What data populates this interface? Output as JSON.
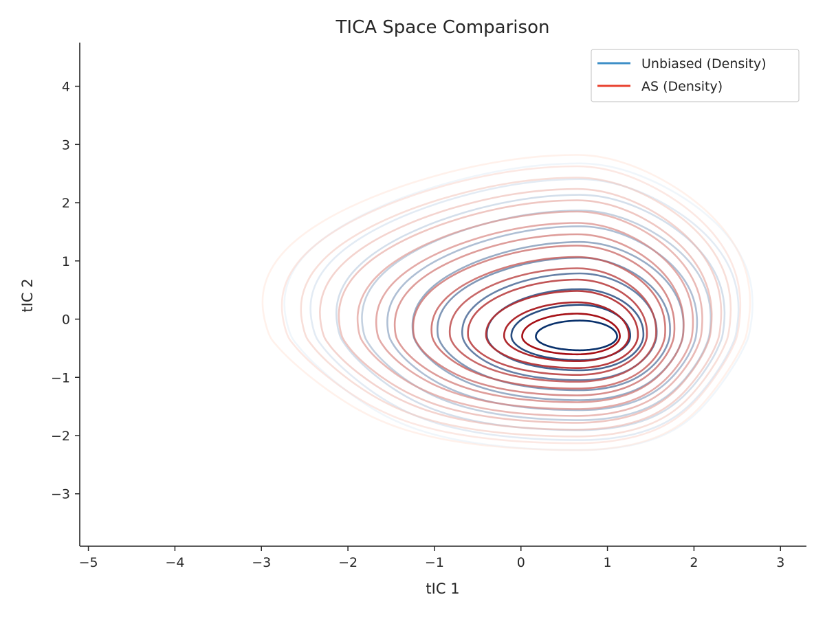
{
  "chart_data": {
    "type": "contour",
    "title": "TICA Space Comparison",
    "xlabel": "tIC 1",
    "ylabel": "tIC 2",
    "xlim": [
      -5.1,
      3.3
    ],
    "ylim": [
      -3.9,
      4.75
    ],
    "xticks": [
      -5,
      -4,
      -3,
      -2,
      -1,
      0,
      1,
      2,
      3
    ],
    "yticks": [
      -3,
      -2,
      -1,
      0,
      1,
      2,
      3,
      4
    ],
    "grid": false,
    "legend_position": "top-right",
    "series": [
      {
        "name": "Unbiased (Density)",
        "color": "#3d8fc7",
        "peak": [
          0.68,
          -0.3
        ],
        "levels": 11,
        "outer_extent": {
          "x": [
            -2.6,
            2.2
          ],
          "y": [
            -2.2,
            2.6
          ]
        }
      },
      {
        "name": "AS (Density)",
        "color": "#e8412f",
        "peak": [
          0.65,
          -0.3
        ],
        "levels": 15,
        "outer_extent": {
          "x": [
            -2.9,
            2.6
          ],
          "y": [
            -2.4,
            3.0
          ]
        }
      }
    ]
  }
}
